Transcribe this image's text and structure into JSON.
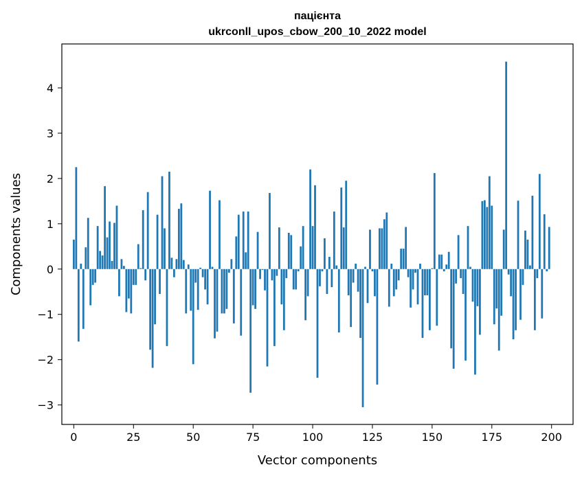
{
  "chart_data": {
    "type": "bar",
    "title": "пацієнта",
    "subtitle": "ukrconll_upos_cbow_200_10_2022 model",
    "xlabel": "Vector components",
    "ylabel": "Components values",
    "xlim": [
      -5,
      209
    ],
    "ylim": [
      -3.43,
      4.97
    ],
    "xticks": [
      0,
      25,
      50,
      75,
      100,
      125,
      150,
      175,
      200
    ],
    "yticks": [
      -3,
      -2,
      -1,
      0,
      1,
      2,
      3,
      4
    ],
    "ytick_labels": [
      "−3",
      "−2",
      "−1",
      "0",
      "1",
      "2",
      "3",
      "4"
    ],
    "grid": false,
    "bar_color": "#1f77b4",
    "x": [
      0,
      1,
      2,
      3,
      4,
      5,
      6,
      7,
      8,
      9,
      10,
      11,
      12,
      13,
      14,
      15,
      16,
      17,
      18,
      19,
      20,
      21,
      22,
      23,
      24,
      25,
      26,
      27,
      28,
      29,
      30,
      31,
      32,
      33,
      34,
      35,
      36,
      37,
      38,
      39,
      40,
      41,
      42,
      43,
      44,
      45,
      46,
      47,
      48,
      49,
      50,
      51,
      52,
      53,
      54,
      55,
      56,
      57,
      58,
      59,
      60,
      61,
      62,
      63,
      64,
      65,
      66,
      67,
      68,
      69,
      70,
      71,
      72,
      73,
      74,
      75,
      76,
      77,
      78,
      79,
      80,
      81,
      82,
      83,
      84,
      85,
      86,
      87,
      88,
      89,
      90,
      91,
      92,
      93,
      94,
      95,
      96,
      97,
      98,
      99,
      100,
      101,
      102,
      103,
      104,
      105,
      106,
      107,
      108,
      109,
      110,
      111,
      112,
      113,
      114,
      115,
      116,
      117,
      118,
      119,
      120,
      121,
      122,
      123,
      124,
      125,
      126,
      127,
      128,
      129,
      130,
      131,
      132,
      133,
      134,
      135,
      136,
      137,
      138,
      139,
      140,
      141,
      142,
      143,
      144,
      145,
      146,
      147,
      148,
      149,
      150,
      151,
      152,
      153,
      154,
      155,
      156,
      157,
      158,
      159,
      160,
      161,
      162,
      163,
      164,
      165,
      166,
      167,
      168,
      169,
      170,
      171,
      172,
      173,
      174,
      175,
      176,
      177,
      178,
      179,
      180,
      181,
      182,
      183,
      184,
      185,
      186,
      187,
      188,
      189,
      190,
      191,
      192,
      193,
      194,
      195,
      196,
      197,
      198,
      199
    ],
    "values": [
      0.65,
      2.25,
      -1.6,
      0.12,
      -1.32,
      0.48,
      1.13,
      -0.8,
      -0.35,
      -0.3,
      0.95,
      0.4,
      0.3,
      1.83,
      0.7,
      1.05,
      0.18,
      1.02,
      1.4,
      -0.6,
      0.22,
      0.07,
      -0.95,
      -0.65,
      -0.98,
      -0.35,
      -0.35,
      0.55,
      0.02,
      1.3,
      -0.25,
      1.7,
      -1.78,
      -2.18,
      -1.22,
      1.2,
      -0.55,
      2.05,
      0.9,
      -1.7,
      2.15,
      0.25,
      -0.18,
      0.22,
      1.33,
      1.45,
      0.2,
      -0.98,
      0.1,
      -0.92,
      -2.1,
      -0.3,
      -0.9,
      0.03,
      -0.18,
      -0.45,
      -0.78,
      1.73,
      0.05,
      -1.53,
      -1.38,
      1.52,
      -0.98,
      -0.98,
      -0.88,
      -0.08,
      0.22,
      -1.2,
      0.72,
      1.2,
      -1.47,
      1.27,
      0.37,
      1.27,
      -2.73,
      -0.8,
      -0.88,
      0.82,
      -0.22,
      -0.02,
      -0.47,
      -2.15,
      1.68,
      -0.25,
      -1.7,
      -0.15,
      0.92,
      -0.78,
      -1.35,
      -0.2,
      0.8,
      0.75,
      -0.45,
      -0.45,
      -0.05,
      0.5,
      0.95,
      -1.13,
      -0.6,
      2.2,
      0.95,
      1.85,
      -2.4,
      -0.38,
      -0.05,
      0.68,
      -0.55,
      0.27,
      -0.4,
      1.27,
      0.08,
      -1.4,
      1.8,
      0.92,
      1.95,
      -0.58,
      -1.28,
      -0.3,
      0.12,
      -0.5,
      -1.52,
      -3.05,
      0.05,
      -0.75,
      0.87,
      -0.05,
      -0.6,
      -2.55,
      0.9,
      0.9,
      1.1,
      1.25,
      -0.83,
      0.12,
      -0.6,
      -0.45,
      -0.25,
      0.45,
      0.45,
      0.93,
      -0.18,
      -0.85,
      -0.45,
      -0.08,
      -0.78,
      0.12,
      -1.52,
      -0.58,
      -0.58,
      -1.35,
      0.02,
      2.12,
      -1.25,
      0.32,
      0.32,
      -0.05,
      0.1,
      0.38,
      -1.75,
      -2.2,
      -0.32,
      0.75,
      -0.2,
      -0.55,
      -2.02,
      0.95,
      0.05,
      -0.72,
      -2.33,
      -0.82,
      -1.45,
      1.5,
      1.52,
      1.37,
      2.05,
      1.4,
      -1.22,
      -0.87,
      -1.8,
      -1.03,
      0.87,
      4.58,
      -0.12,
      -0.6,
      -1.55,
      -1.35,
      1.51,
      -1.12,
      -0.35,
      0.85,
      0.65,
      0.08,
      1.62,
      -1.35,
      -0.2,
      2.1,
      -1.09,
      1.21,
      -0.05,
      0.93
    ]
  }
}
